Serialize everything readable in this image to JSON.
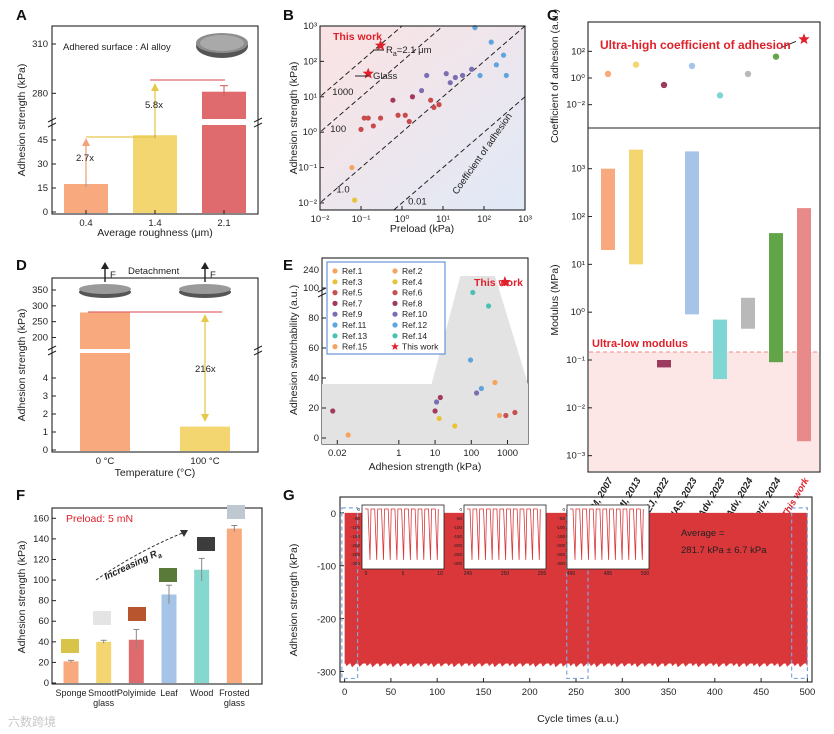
{
  "panels": {
    "A": "A",
    "B": "B",
    "C": "C",
    "D": "D",
    "E": "E",
    "F": "F",
    "G": "G"
  },
  "watermark": "六数跨境",
  "chart_data": [
    {
      "id": "A",
      "type": "bar",
      "inset_text": "Adhered surface : Al alloy",
      "xlabel": "Average roughness (μm)",
      "ylabel": "Adhesion strength (kPa)",
      "categories": [
        "0.4",
        "1.4",
        "2.1"
      ],
      "values": [
        17.5,
        48,
        281
      ],
      "colors": [
        "#f8a97d",
        "#f4d670",
        "#e06b6e"
      ],
      "yticks_low": [
        "0",
        "15",
        "30",
        "45"
      ],
      "yticks_high": [
        "280",
        "310"
      ],
      "annotations": [
        "2.7x",
        "5.8x"
      ]
    },
    {
      "id": "B",
      "type": "scatter",
      "xlabel": "Preload (kPa)",
      "ylabel": "Adhesion strength (kPa)",
      "xticks": [
        "10⁻²",
        "10⁻¹",
        "10⁰",
        "10¹",
        "10²",
        "10³"
      ],
      "yticks": [
        "10⁻²",
        "10⁻¹",
        "10⁰",
        "10¹",
        "10²",
        "10³"
      ],
      "xlim_log": [
        -2,
        3
      ],
      "ylim_log": [
        -2.2,
        3
      ],
      "line_labels": [
        "1000",
        "100",
        "1.0",
        "0.01"
      ],
      "text_this_work": "This work",
      "text_ra": "R",
      "text_ra_sub": "a",
      "text_ra_val": "=2.1 μm",
      "text_glass": "Glass",
      "text_coeff": "Coefficient of adhesion",
      "points": [
        {
          "x": 0.06,
          "y": 0.1,
          "c": "#f4a460"
        },
        {
          "x": 0.07,
          "y": 0.012,
          "c": "#e8c33a"
        },
        {
          "x": 0.1,
          "y": 1.2,
          "c": "#c94a4a"
        },
        {
          "x": 0.12,
          "y": 2.5,
          "c": "#c94a4a"
        },
        {
          "x": 0.15,
          "y": 2.5,
          "c": "#c94a4a"
        },
        {
          "x": 0.2,
          "y": 1.5,
          "c": "#c94a4a"
        },
        {
          "x": 0.3,
          "y": 2.5,
          "c": "#c94a4a"
        },
        {
          "x": 0.6,
          "y": 8,
          "c": "#a23b5a"
        },
        {
          "x": 0.8,
          "y": 3,
          "c": "#c94a4a"
        },
        {
          "x": 1.2,
          "y": 3,
          "c": "#c94a4a"
        },
        {
          "x": 1.5,
          "y": 2,
          "c": "#c94a4a"
        },
        {
          "x": 1.8,
          "y": 10,
          "c": "#a23b5a"
        },
        {
          "x": 3,
          "y": 15,
          "c": "#7a6fb0"
        },
        {
          "x": 4,
          "y": 40,
          "c": "#7a6fb0"
        },
        {
          "x": 5,
          "y": 8,
          "c": "#c94a4a"
        },
        {
          "x": 6,
          "y": 5,
          "c": "#c94a4a"
        },
        {
          "x": 8,
          "y": 6,
          "c": "#c94a4a"
        },
        {
          "x": 12,
          "y": 45,
          "c": "#7a6fb0"
        },
        {
          "x": 15,
          "y": 25,
          "c": "#7a6fb0"
        },
        {
          "x": 20,
          "y": 35,
          "c": "#7a6fb0"
        },
        {
          "x": 30,
          "y": 40,
          "c": "#7a6fb0"
        },
        {
          "x": 50,
          "y": 60,
          "c": "#7a6fb0"
        },
        {
          "x": 60,
          "y": 900,
          "c": "#5da5dc"
        },
        {
          "x": 80,
          "y": 40,
          "c": "#5da5dc"
        },
        {
          "x": 150,
          "y": 350,
          "c": "#5da5dc"
        },
        {
          "x": 200,
          "y": 80,
          "c": "#5da5dc"
        },
        {
          "x": 300,
          "y": 150,
          "c": "#5da5dc"
        },
        {
          "x": 350,
          "y": 40,
          "c": "#5da5dc"
        }
      ],
      "this_work": {
        "x": 0.3,
        "y": 281
      },
      "glass": {
        "x": 0.15,
        "y": 45
      }
    },
    {
      "id": "C",
      "type": "scatter+bar",
      "title_text": "Ultra-high coefficient of adhesion",
      "low_text": "Ultra-low modulus",
      "ylabel_top": "Coefficient of adhesion (a.u.)",
      "ylabel_bottom": "Modulus (MPa)",
      "yticks_top": [
        "10⁻²",
        "10⁰",
        "10²"
      ],
      "yticks_bottom": [
        "10⁻³",
        "10⁻²",
        "10⁻¹",
        "10⁰",
        "10¹",
        "10²",
        "10³"
      ],
      "categories": [
        "AM, 2007",
        "AMI, 2013",
        "CEJ, 2022",
        "PNAS, 2023",
        "Sci. Adv, 2023",
        "Sci. Adv, 2024",
        "Mater. Horiz, 2024",
        "This work"
      ],
      "coeff": [
        2,
        10,
        0.3,
        8,
        0.05,
        2,
        40,
        800
      ],
      "modulus_low": [
        20,
        10,
        0.07,
        0.9,
        0.04,
        0.45,
        0.09,
        0.002
      ],
      "modulus_high": [
        1000,
        2500,
        0.1,
        2300,
        0.7,
        2,
        45,
        150
      ],
      "colors": [
        "#f8a97d",
        "#f4d670",
        "#9c3b5e",
        "#a5c4e8",
        "#7fd6d3",
        "#b9b9b9",
        "#62a549",
        "#e88a8a"
      ]
    },
    {
      "id": "D",
      "type": "bar",
      "text_detach": "Detachment",
      "text_f": "F",
      "xlabel": "Temperature (°C)",
      "ylabel": "Adhesion strength (kPa)",
      "categories": [
        "0 °C",
        "100 °C"
      ],
      "values": [
        279,
        1.3
      ],
      "colors": [
        "#f8a97d",
        "#f4d670"
      ],
      "yticks_low": [
        "0",
        "1",
        "2",
        "3",
        "4"
      ],
      "yticks_high": [
        "200",
        "250",
        "300",
        "350"
      ],
      "annotation": "216x"
    },
    {
      "id": "E",
      "type": "scatter",
      "xlabel": "Adhesion strength (kPa)",
      "ylabel": "Adhesion switchability (a.u.)",
      "xticks": [
        "0.02",
        "1",
        "10",
        "100",
        "1000"
      ],
      "yticks": [
        "0",
        "20",
        "40",
        "60",
        "80",
        "100",
        "240"
      ],
      "this_work_label": "This work",
      "legend": [
        {
          "name": "Ref.1",
          "c": "#f4a460"
        },
        {
          "name": "Ref.2",
          "c": "#f4a460"
        },
        {
          "name": "Ref.3",
          "c": "#e8c33a"
        },
        {
          "name": "Ref.4",
          "c": "#e8c33a"
        },
        {
          "name": "Ref.5",
          "c": "#c95050"
        },
        {
          "name": "Ref.6",
          "c": "#c95050"
        },
        {
          "name": "Ref.7",
          "c": "#a23b5a"
        },
        {
          "name": "Ref.8",
          "c": "#a23b5a"
        },
        {
          "name": "Ref.9",
          "c": "#7a6fb0"
        },
        {
          "name": "Ref.10",
          "c": "#7a6fb0"
        },
        {
          "name": "Ref.11",
          "c": "#5da5dc"
        },
        {
          "name": "Ref.12",
          "c": "#5da5dc"
        },
        {
          "name": "Ref.13",
          "c": "#4bc0b5"
        },
        {
          "name": "Ref.14",
          "c": "#4bc0b5"
        },
        {
          "name": "Ref.15",
          "c": "#f4a460"
        },
        {
          "name": "This work",
          "c": "#e0202a",
          "star": true
        }
      ],
      "points": [
        {
          "x": 0.015,
          "y": 18,
          "c": "#a23b5a"
        },
        {
          "x": 0.04,
          "y": 2,
          "c": "#f4a460"
        },
        {
          "x": 10,
          "y": 18,
          "c": "#a23b5a"
        },
        {
          "x": 11,
          "y": 24,
          "c": "#7a6fb0"
        },
        {
          "x": 13,
          "y": 13,
          "c": "#e8c33a"
        },
        {
          "x": 14,
          "y": 27,
          "c": "#a23b5a"
        },
        {
          "x": 35,
          "y": 8,
          "c": "#e8c33a"
        },
        {
          "x": 95,
          "y": 52,
          "c": "#5da5dc"
        },
        {
          "x": 110,
          "y": 97,
          "c": "#4bc0b5"
        },
        {
          "x": 140,
          "y": 30,
          "c": "#7a6fb0"
        },
        {
          "x": 190,
          "y": 33,
          "c": "#5da5dc"
        },
        {
          "x": 300,
          "y": 88,
          "c": "#4bc0b5"
        },
        {
          "x": 450,
          "y": 37,
          "c": "#f4a460"
        },
        {
          "x": 600,
          "y": 15,
          "c": "#f4a460"
        },
        {
          "x": 900,
          "y": 15,
          "c": "#c95050"
        },
        {
          "x": 1600,
          "y": 17,
          "c": "#c95050"
        }
      ],
      "this_work": {
        "x": 1600,
        "y": 216
      }
    },
    {
      "id": "F",
      "type": "bar",
      "preload_text": "Preload: 5 mN",
      "trend_text": "Increasing R",
      "trend_sub": "a",
      "ylabel": "Adhesion strength (kPa)",
      "categories": [
        "Sponge",
        "Smooth glass",
        "Polyimide",
        "Leaf",
        "Wood",
        "Frosted glass"
      ],
      "values": [
        21,
        40,
        42,
        86,
        110,
        150
      ],
      "errors": [
        1,
        1.5,
        10,
        9,
        11,
        3
      ],
      "colors": [
        "#f8a97d",
        "#f4d670",
        "#e06b6e",
        "#a5c4e8",
        "#86d8cf",
        "#f8a97d"
      ],
      "yticks": [
        "0",
        "20",
        "40",
        "60",
        "80",
        "100",
        "120",
        "140",
        "160"
      ],
      "ylim": [
        0,
        170
      ]
    },
    {
      "id": "G",
      "type": "area",
      "xlabel": "Cycle times (a.u.)",
      "ylabel": "Adhesion strength (kPa)",
      "xticks": [
        "0",
        "50",
        "100",
        "150",
        "200",
        "250",
        "300",
        "350",
        "400",
        "450",
        "500"
      ],
      "yticks": [
        "0",
        "-100",
        "-200",
        "-300"
      ],
      "xlim": [
        -5,
        505
      ],
      "ylim": [
        -320,
        30
      ],
      "average_label": "Average =",
      "average_value": "281.7 kPa ± 6.7 kPa",
      "insets": [
        {
          "xticks": [
            "0",
            "5",
            "10"
          ],
          "yticks": [
            "0",
            "-50",
            "-100",
            "-150",
            "-200",
            "-250",
            "-300"
          ]
        },
        {
          "xticks": [
            "245",
            "250",
            "255"
          ],
          "yticks": [
            "0",
            "-50",
            "-100",
            "-150",
            "-200",
            "-250",
            "-300"
          ]
        },
        {
          "xticks": [
            "490",
            "495",
            "500"
          ],
          "yticks": [
            "0",
            "-50",
            "-100",
            "-150",
            "-200",
            "-250",
            "-300"
          ]
        }
      ],
      "color": "#d9373a"
    }
  ]
}
